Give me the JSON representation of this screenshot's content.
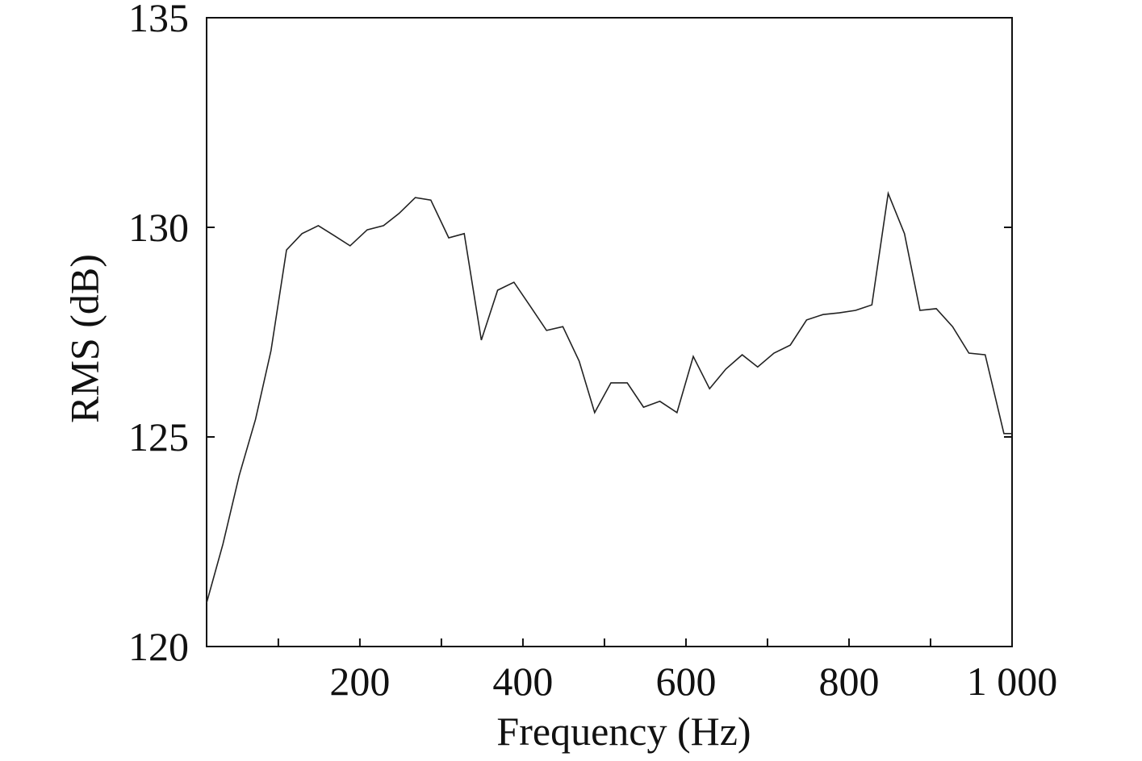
{
  "chart_data": {
    "type": "line",
    "x_label": "Frequency (Hz)",
    "y_label": "RMS (dB)",
    "xlim": [
      12,
      1000
    ],
    "xticks": [
      200,
      400,
      600,
      800,
      {
        "value": 1000,
        "label": "1 000"
      }
    ],
    "xminorticks": [
      100,
      300,
      500,
      700,
      900
    ],
    "ylim": [
      120,
      135
    ],
    "yticks": [
      120,
      125,
      130,
      135
    ],
    "color": "#222222",
    "x": [
      12,
      32,
      52,
      72,
      91,
      110,
      129,
      149,
      168,
      188,
      209,
      229,
      248,
      268,
      287,
      309,
      328,
      349,
      369,
      389,
      409,
      429,
      449,
      469,
      488,
      508,
      528,
      548,
      568,
      589,
      609,
      629,
      649,
      669,
      688,
      708,
      728,
      748,
      768,
      788,
      808,
      828,
      848,
      868,
      887,
      907,
      927,
      947,
      967,
      990,
      1000
    ],
    "values": [
      121.04,
      122.44,
      124.08,
      125.42,
      127.06,
      129.46,
      129.85,
      130.04,
      129.81,
      129.56,
      129.94,
      130.04,
      130.33,
      130.71,
      130.65,
      129.75,
      129.85,
      127.31,
      128.5,
      128.69,
      128.12,
      127.54,
      127.63,
      126.81,
      125.58,
      126.29,
      126.29,
      125.71,
      125.85,
      125.58,
      126.92,
      126.15,
      126.62,
      126.96,
      126.67,
      127.0,
      127.19,
      127.79,
      127.92,
      127.96,
      128.02,
      128.15,
      130.81,
      129.85,
      128.02,
      128.06,
      127.63,
      127.0,
      126.96,
      125.08,
      125.08
    ]
  }
}
